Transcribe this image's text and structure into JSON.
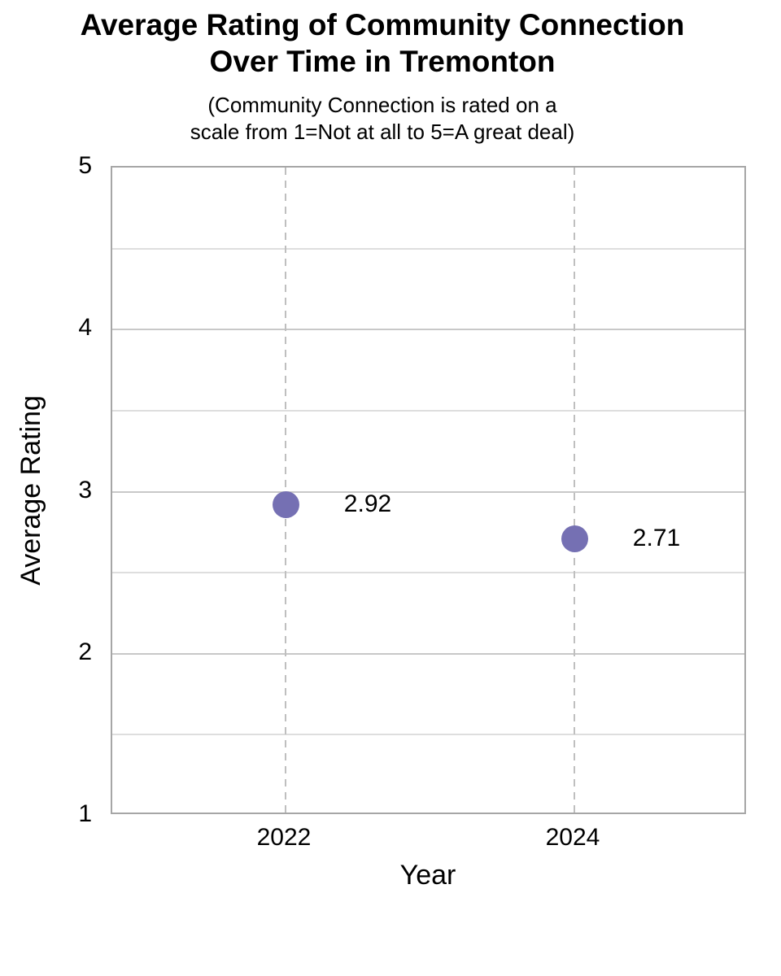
{
  "chart_data": {
    "type": "scatter",
    "title_lines": [
      "Average Rating of Community Connection",
      "Over Time in Tremonton"
    ],
    "subtitle_lines": [
      "(Community Connection is rated on a",
      "scale from 1=Not at all to 5=A great deal)"
    ],
    "xlabel": "Year",
    "ylabel": "Average Rating",
    "x": [
      2022,
      2024
    ],
    "values": [
      2.92,
      2.71
    ],
    "point_labels": [
      "2.92",
      "2.71"
    ],
    "x_tick_labels": [
      "2022",
      "2024"
    ],
    "y_tick_labels": [
      "5",
      "4",
      "3",
      "2",
      "1"
    ],
    "y_ticks": [
      5,
      4,
      3,
      2,
      1
    ],
    "xlim": [
      2020.8,
      2025.2
    ],
    "ylim": [
      1,
      5
    ],
    "y_grid_step": 0.5,
    "grid": true,
    "legend": "none",
    "marker_color": "#7570b3",
    "axis_border_color": "#a6a6a6",
    "major_grid_color": "#c8c8c8",
    "minor_grid_color": "#dedede",
    "dashed_line_color": "#bfbfbf",
    "text_color": "#000000"
  }
}
